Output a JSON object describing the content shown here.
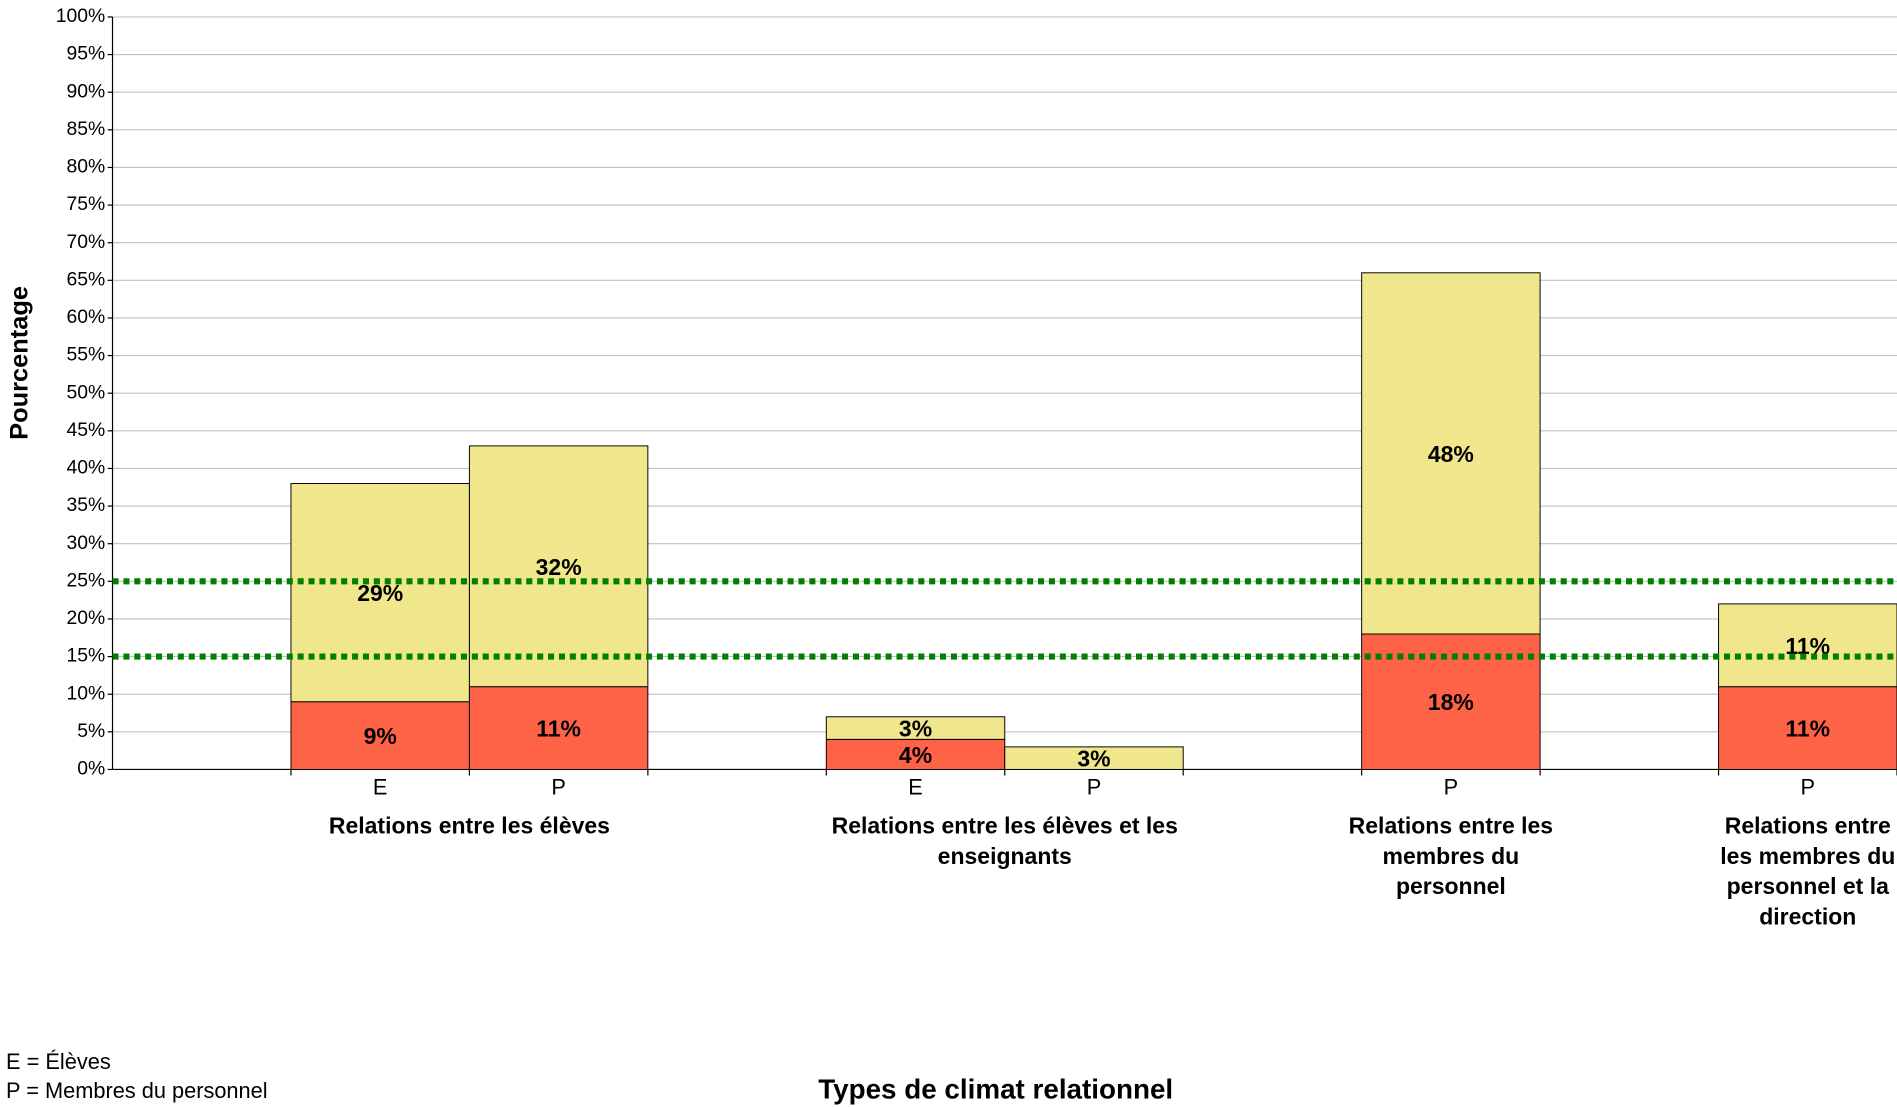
{
  "chart_data": {
    "type": "stacked-bar",
    "y_label": "Pourcentage",
    "x_label": "Types de climat relationnel",
    "groups": [
      {
        "label": "Relations entre les élèves",
        "categories": [
          "E",
          "P"
        ]
      },
      {
        "label": "Relations entre les élèves et les enseignants",
        "categories": [
          "E",
          "P"
        ]
      },
      {
        "label": "Relations entre les membres du personnel",
        "categories": [
          "P"
        ]
      },
      {
        "label": "Relations entre les membres du personnel et la direction",
        "categories": [
          "P"
        ]
      }
    ],
    "series": [
      {
        "color": "#ff6347",
        "values": [
          9,
          11,
          4,
          null,
          18,
          11
        ],
        "value_labels": [
          "9%",
          "11%",
          "4%",
          null,
          "18%",
          "11%"
        ]
      },
      {
        "color": "#f0e68c",
        "values": [
          29,
          32,
          3,
          3,
          48,
          11
        ],
        "value_labels": [
          "29%",
          "32%",
          "3%",
          "3%",
          "48%",
          "11%"
        ]
      }
    ],
    "ylim": [
      0,
      100
    ],
    "yticks": [
      {
        "value": 0,
        "label": "0%"
      },
      {
        "value": 5,
        "label": "5%"
      },
      {
        "value": 10,
        "label": "10%"
      },
      {
        "value": 15,
        "label": "15%"
      },
      {
        "value": 20,
        "label": "20%"
      },
      {
        "value": 25,
        "label": "25%"
      },
      {
        "value": 30,
        "label": "30%"
      },
      {
        "value": 35,
        "label": "35%"
      },
      {
        "value": 40,
        "label": "40%"
      },
      {
        "value": 45,
        "label": "45%"
      },
      {
        "value": 50,
        "label": "50%"
      },
      {
        "value": 55,
        "label": "55%"
      },
      {
        "value": 60,
        "label": "60%"
      },
      {
        "value": 65,
        "label": "65%"
      },
      {
        "value": 70,
        "label": "70%"
      },
      {
        "value": 75,
        "label": "75%"
      },
      {
        "value": 80,
        "label": "80%"
      },
      {
        "value": 85,
        "label": "85%"
      },
      {
        "value": 90,
        "label": "90%"
      },
      {
        "value": 95,
        "label": "95%"
      },
      {
        "value": 100,
        "label": "100%"
      }
    ],
    "grid": true,
    "reference_lines": [
      {
        "value": 15,
        "color": "#008000"
      },
      {
        "value": 25,
        "color": "#008000"
      }
    ],
    "notes": [
      "E = Élèves",
      "P = Membres du personnel"
    ]
  }
}
